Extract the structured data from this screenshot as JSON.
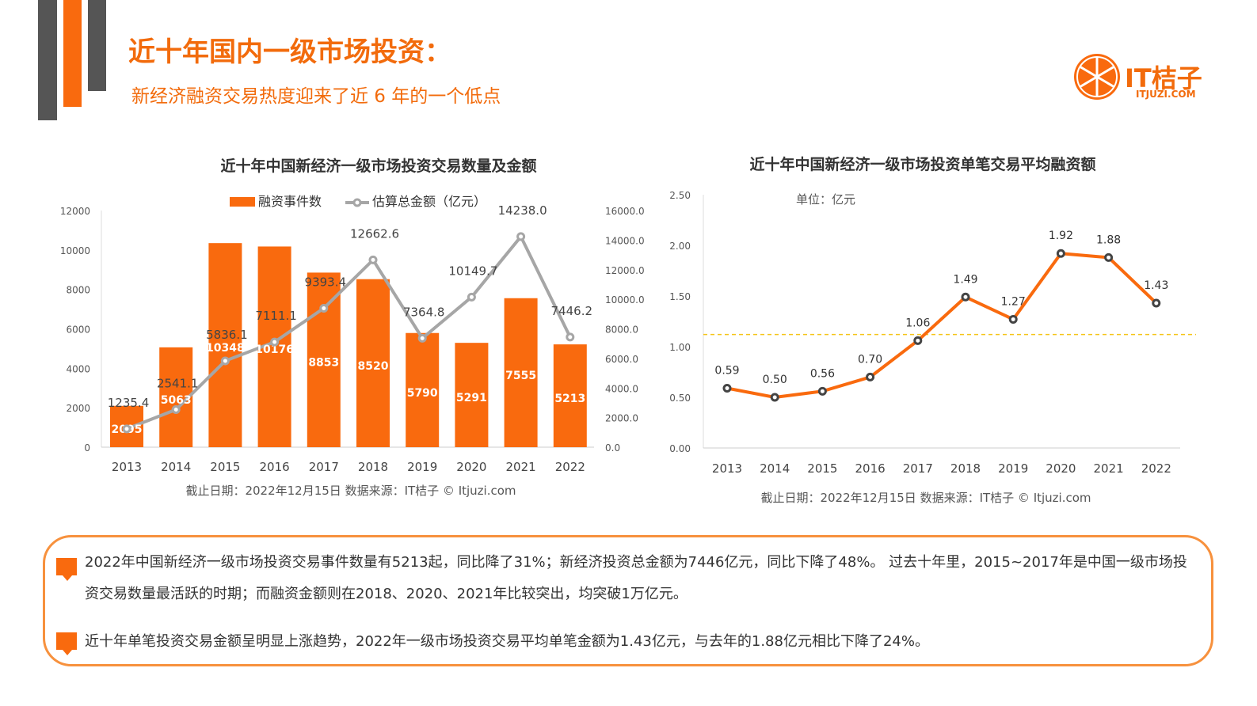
{
  "header": {
    "title": "近十年国内一级市场投资：",
    "subtitle": "新经济融资交易热度迎来了近 6 年的一个低点"
  },
  "logo": {
    "name": "IT桔子",
    "domain": "ITJUZI.COM"
  },
  "colors": {
    "accent": "#f96a0e",
    "line_gray": "#a6a6a6",
    "ref_line": "#f5c518"
  },
  "chart_data": [
    {
      "type": "bar+line",
      "title": "近十年中国新经济一级市场投资交易数量及金额",
      "categories": [
        "2013",
        "2014",
        "2015",
        "2016",
        "2017",
        "2018",
        "2019",
        "2020",
        "2021",
        "2022"
      ],
      "series": [
        {
          "name": "融资事件数",
          "type": "bar",
          "axis": "left",
          "values": [
            2095,
            5063,
            10348,
            10176,
            8853,
            8520,
            5790,
            5291,
            7555,
            5213
          ],
          "labels": [
            "2095",
            "5063",
            "10348",
            "10176",
            "8853",
            "8520",
            "5790",
            "5291",
            "7555",
            "5213"
          ]
        },
        {
          "name": "估算总金额（亿元）",
          "type": "line",
          "axis": "right",
          "values": [
            1235.4,
            2541.1,
            5836.1,
            7111.1,
            9393.4,
            12662.6,
            7364.8,
            10149.7,
            14238.0,
            7446.2
          ],
          "labels": [
            "1235.4",
            "2541.1",
            "5836.1",
            "7111.1",
            "9393.4",
            "12662.6",
            "7364.8",
            "10149.7",
            "14238.0",
            "7446.2"
          ]
        }
      ],
      "ylim_left": [
        0,
        12000
      ],
      "yticks_left": [
        "0",
        "2000",
        "4000",
        "6000",
        "8000",
        "10000",
        "12000"
      ],
      "ylim_right": [
        0,
        16000
      ],
      "yticks_right": [
        "0.0",
        "2000.0",
        "4000.0",
        "6000.0",
        "8000.0",
        "10000.0",
        "12000.0",
        "14000.0",
        "16000.0"
      ],
      "legend": "top",
      "grid": false,
      "footnote": "截止日期：2022年12月15日    数据来源：IT桔子 © Itjuzi.com"
    },
    {
      "type": "line",
      "title": "近十年中国新经济一级市场投资单笔交易平均融资额",
      "unit_label": "单位：亿元",
      "categories": [
        "2013",
        "2014",
        "2015",
        "2016",
        "2017",
        "2018",
        "2019",
        "2020",
        "2021",
        "2022"
      ],
      "values": [
        0.59,
        0.5,
        0.56,
        0.7,
        1.06,
        1.49,
        1.27,
        1.92,
        1.88,
        1.43
      ],
      "labels": [
        "0.59",
        "0.50",
        "0.56",
        "0.70",
        "1.06",
        "1.49",
        "1.27",
        "1.92",
        "1.88",
        "1.43"
      ],
      "ylim": [
        0,
        2.5
      ],
      "yticks": [
        "0.00",
        "0.50",
        "1.00",
        "1.50",
        "2.00",
        "2.50"
      ],
      "reference_line": 1.12,
      "grid": false,
      "footnote": "截止日期：2022年12月15日    数据来源：IT桔子 © Itjuzi.com"
    }
  ],
  "summary": {
    "points": [
      "2022年中国新经济一级市场投资交易事件数量有5213起，同比降了31%；新经济投资总金额为7446亿元，同比下降了48%。 过去十年里，2015~2017年是中国一级市场投资交易数量最活跃的时期；而融资金额则在2018、2020、2021年比较突出，均突破1万亿元。",
      "近十年单笔投资交易金额呈明显上涨趋势，2022年一级市场投资交易平均单笔金额为1.43亿元，与去年的1.88亿元相比下降了24%。"
    ]
  }
}
